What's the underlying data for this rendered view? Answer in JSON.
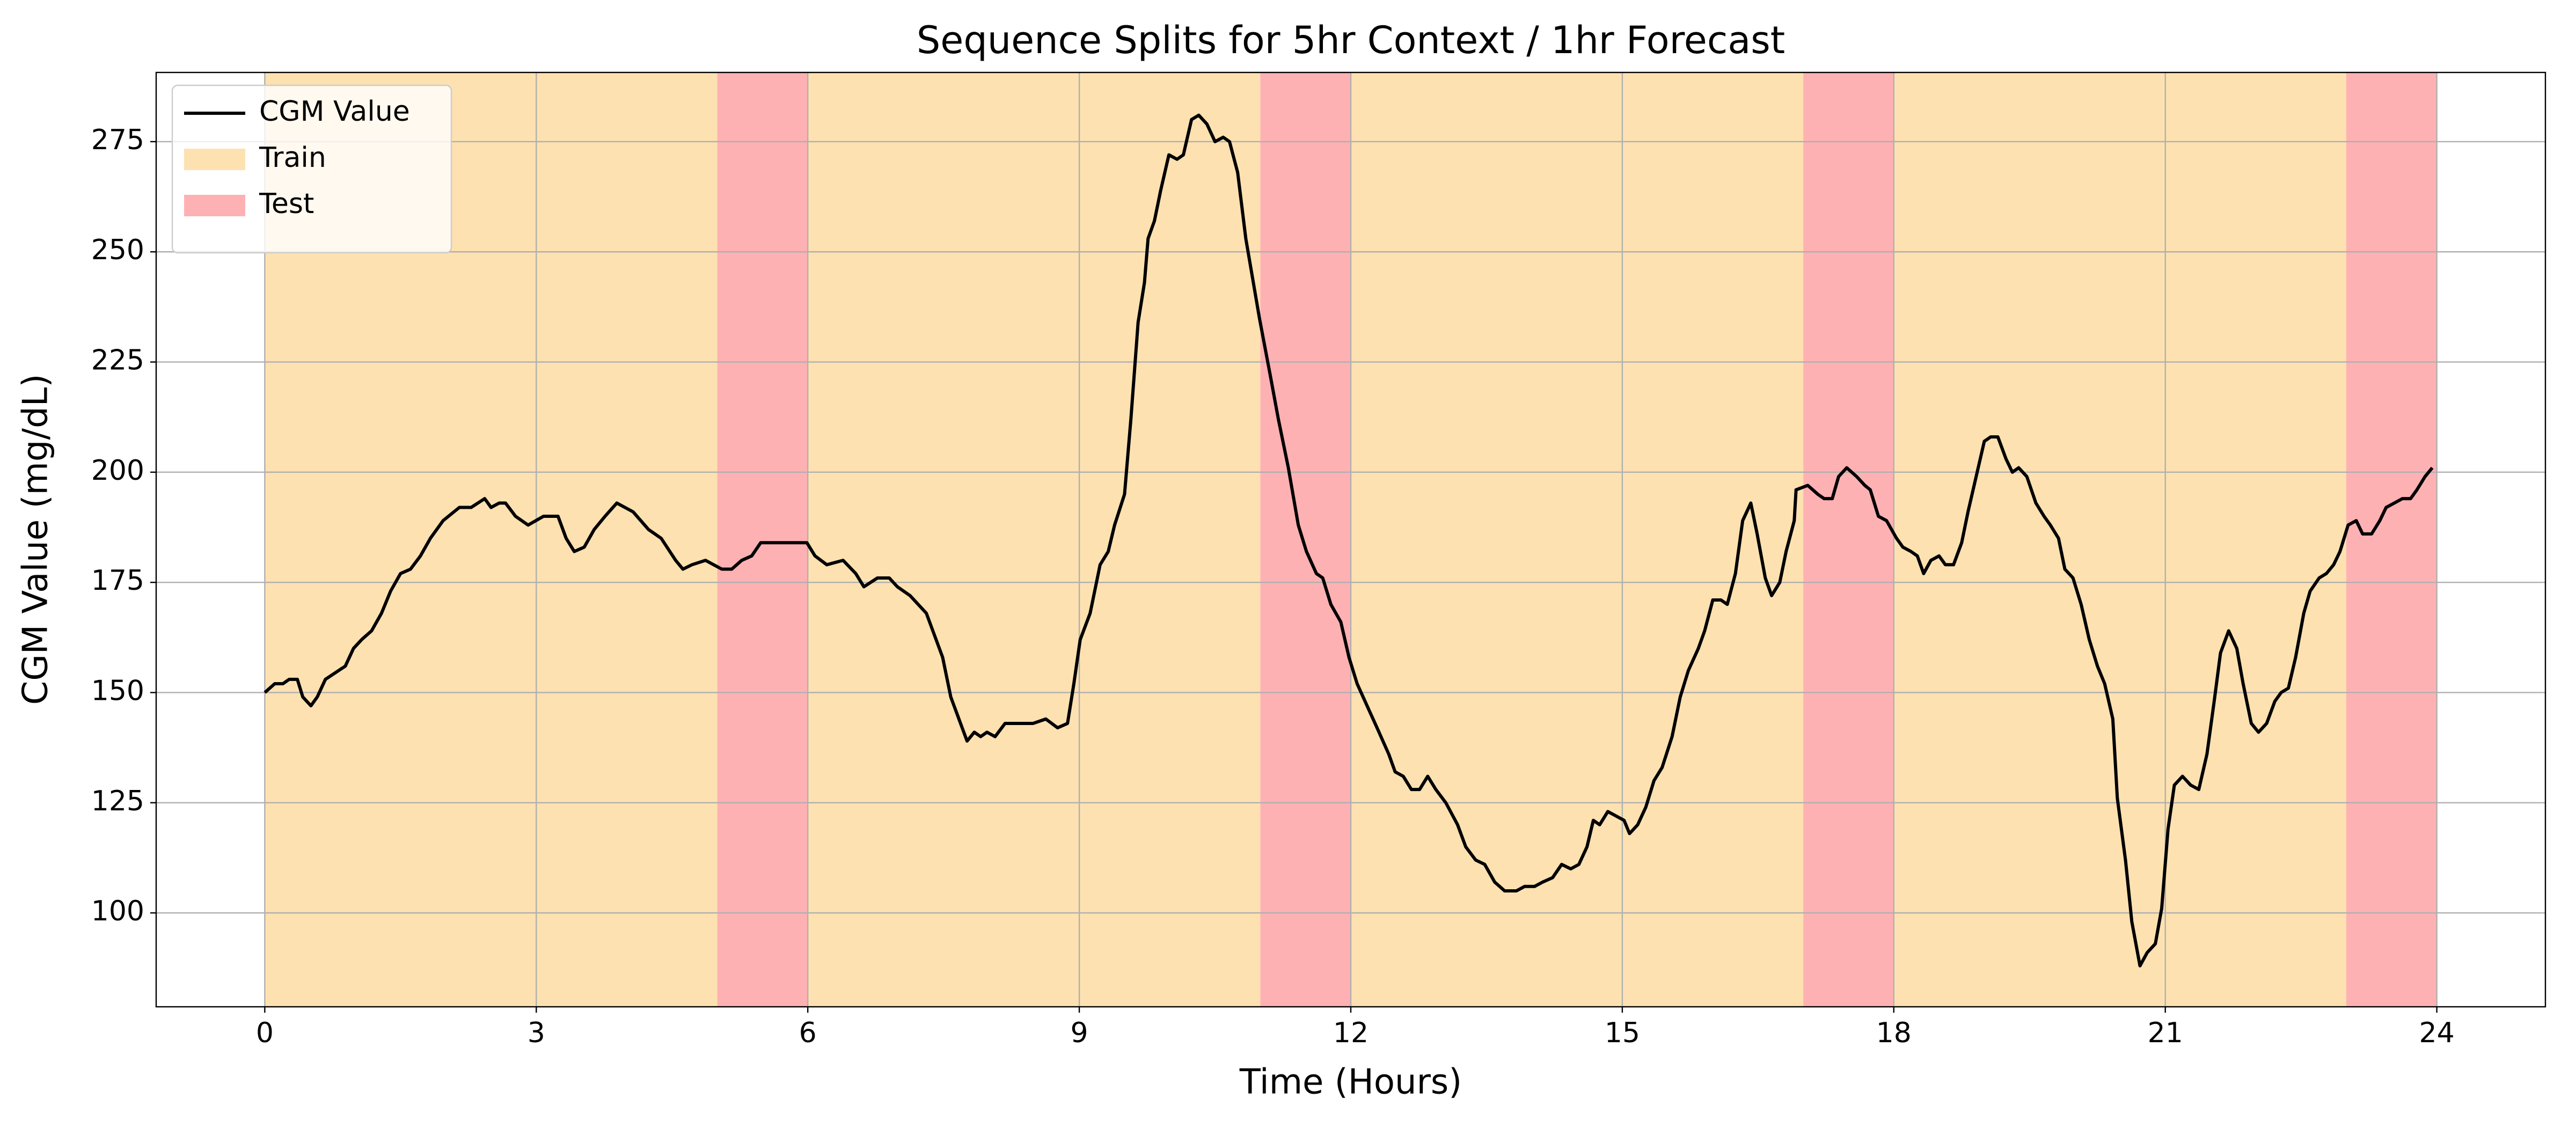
{
  "chart_data": {
    "type": "line",
    "title": "Sequence Splits for 5hr Context / 1hr Forecast",
    "x_label": "Time (Hours)",
    "y_label": "CGM Value (mg/dL)",
    "xlim": [
      -1.2,
      25.2
    ],
    "ylim": [
      78.7,
      290.7
    ],
    "xticks": [
      0,
      3,
      6,
      9,
      12,
      15,
      18,
      21,
      24
    ],
    "yticks": [
      100,
      125,
      150,
      175,
      200,
      225,
      250,
      275
    ],
    "grid": true,
    "legend_loc": "upper left",
    "x": [
      0,
      0.11,
      0.2,
      0.27,
      0.36,
      0.42,
      0.51,
      0.58,
      0.67,
      0.89,
      0.98,
      1.07,
      1.18,
      1.29,
      1.39,
      1.5,
      1.61,
      1.72,
      1.83,
      1.97,
      2.15,
      2.28,
      2.43,
      2.5,
      2.59,
      2.66,
      2.77,
      2.91,
      3.08,
      3.24,
      3.33,
      3.42,
      3.53,
      3.64,
      3.76,
      3.89,
      4.07,
      4.24,
      4.38,
      4.54,
      4.62,
      4.72,
      4.87,
      5.05,
      5.16,
      5.27,
      5.38,
      5.48,
      5.68,
      5.99,
      6.08,
      6.21,
      6.39,
      6.53,
      6.62,
      6.77,
      6.9,
      6.99,
      7.13,
      7.31,
      7.49,
      7.58,
      7.76,
      7.84,
      7.91,
      7.98,
      8.07,
      8.18,
      8.34,
      8.49,
      8.63,
      8.76,
      8.87,
      8.94,
      9.01,
      9.12,
      9.23,
      9.32,
      9.39,
      9.5,
      9.57,
      9.65,
      9.72,
      9.76,
      9.83,
      9.9,
      9.99,
      10.08,
      10.15,
      10.24,
      10.32,
      10.41,
      10.5,
      10.59,
      10.66,
      10.75,
      10.84,
      10.99,
      11.11,
      11.2,
      11.31,
      11.42,
      11.51,
      11.62,
      11.69,
      11.78,
      11.89,
      11.98,
      12.07,
      12.18,
      12.29,
      12.42,
      12.49,
      12.58,
      12.67,
      12.76,
      12.85,
      12.94,
      13.05,
      13.18,
      13.27,
      13.38,
      13.48,
      13.59,
      13.7,
      13.83,
      13.92,
      14.03,
      14.12,
      14.23,
      14.33,
      14.43,
      14.52,
      14.61,
      14.68,
      14.75,
      14.84,
      14.93,
      15.02,
      15.08,
      15.17,
      15.26,
      15.35,
      15.44,
      15.55,
      15.64,
      15.73,
      15.84,
      15.91,
      16,
      16.09,
      16.16,
      16.25,
      16.33,
      16.42,
      16.49,
      16.58,
      16.65,
      16.74,
      16.81,
      16.9,
      16.92,
      17.05,
      17.16,
      17.23,
      17.32,
      17.39,
      17.48,
      17.59,
      17.68,
      17.74,
      17.83,
      17.92,
      18.03,
      18.1,
      18.19,
      18.26,
      18.33,
      18.41,
      18.5,
      18.57,
      18.66,
      18.75,
      18.82,
      18.91,
      19,
      19.07,
      19.15,
      19.24,
      19.31,
      19.38,
      19.47,
      19.57,
      19.66,
      19.73,
      19.82,
      19.89,
      19.98,
      20.07,
      20.16,
      20.25,
      20.33,
      20.42,
      20.47,
      20.56,
      20.63,
      20.72,
      20.8,
      20.89,
      20.96,
      21.03,
      21.1,
      21.19,
      21.28,
      21.37,
      21.46,
      21.54,
      21.61,
      21.7,
      21.79,
      21.86,
      21.95,
      22.03,
      22.12,
      22.21,
      22.28,
      22.36,
      22.44,
      22.53,
      22.6,
      22.7,
      22.78,
      22.86,
      22.93,
      23.02,
      23.11,
      23.18,
      23.28,
      23.37,
      23.44,
      23.53,
      23.62,
      23.71,
      23.78,
      23.87,
      23.95
    ],
    "series": [
      {
        "name": "CGM Value",
        "color": "#000000",
        "values": [
          150,
          152,
          152,
          153,
          153,
          149,
          147,
          149,
          153,
          156,
          160,
          162,
          164,
          168,
          173,
          177,
          178,
          181,
          185,
          189,
          192,
          192,
          194,
          192,
          193,
          193,
          190,
          188,
          190,
          190,
          185,
          182,
          183,
          187,
          190,
          193,
          191,
          187,
          185,
          180,
          178,
          179,
          180,
          178,
          178,
          180,
          181,
          184,
          184,
          184,
          181,
          179,
          180,
          177,
          174,
          176,
          176,
          174,
          172,
          168,
          158,
          149,
          139,
          141,
          140,
          141,
          140,
          143,
          143,
          143,
          144,
          142,
          143,
          152,
          162,
          168,
          179,
          182,
          188,
          195,
          212,
          234,
          243,
          253,
          257,
          264,
          272,
          271,
          272,
          280,
          281,
          279,
          275,
          276,
          275,
          268,
          253,
          235,
          222,
          212,
          201,
          188,
          182,
          177,
          176,
          170,
          166,
          158,
          152,
          147,
          142,
          136,
          132,
          131,
          128,
          128,
          131,
          128,
          125,
          120,
          115,
          112,
          111,
          107,
          105,
          105,
          106,
          106,
          107,
          108,
          111,
          110,
          111,
          115,
          121,
          120,
          123,
          122,
          121,
          118,
          120,
          124,
          130,
          133,
          140,
          149,
          155,
          160,
          164,
          171,
          171,
          170,
          177,
          189,
          193,
          186,
          176,
          172,
          175,
          182,
          189,
          196,
          197,
          195,
          194,
          194,
          199,
          201,
          199,
          197,
          196,
          190,
          189,
          185,
          183,
          182,
          181,
          177,
          180,
          181,
          179,
          179,
          184,
          191,
          199,
          207,
          208,
          208,
          203,
          200,
          201,
          199,
          193,
          190,
          188,
          185,
          178,
          176,
          170,
          162,
          156,
          152,
          144,
          126,
          112,
          98,
          88,
          91,
          93,
          101,
          119,
          129,
          131,
          129,
          128,
          136,
          148,
          159,
          164,
          160,
          152,
          143,
          141,
          143,
          148,
          150,
          151,
          158,
          168,
          173,
          176,
          177,
          179,
          182,
          188,
          189,
          186,
          186,
          189,
          192,
          193,
          194,
          194,
          196,
          199,
          201
        ]
      }
    ],
    "spans": [
      {
        "name": "Train",
        "color": "#fde1b1",
        "start": [
          0,
          6,
          12,
          18
        ],
        "end": [
          5,
          11,
          17,
          23
        ]
      },
      {
        "name": "Test",
        "color": "#feb1b3",
        "start": [
          5,
          11,
          17,
          23
        ],
        "end": [
          6,
          12,
          18,
          24
        ]
      }
    ]
  }
}
